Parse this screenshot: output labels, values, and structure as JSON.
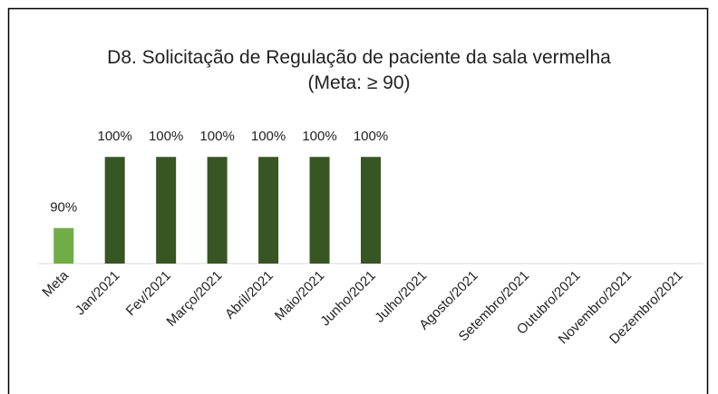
{
  "chart_data": {
    "type": "bar",
    "title": "D8. Solicitação de Regulação de paciente da sala vermelha (Meta: ≥ 90)",
    "categories": [
      "Meta",
      "Jan/2021",
      "Fev/2021",
      "Março/2021",
      "Abril/2021",
      "Maio/2021",
      "Junho/2021",
      "Julho/2021",
      "Agosto/2021",
      "Setembro/2021",
      "Outubro/2021",
      "Novembro/2021",
      "Dezembro/2021"
    ],
    "values": [
      90,
      100,
      100,
      100,
      100,
      100,
      100,
      null,
      null,
      null,
      null,
      null,
      null
    ],
    "value_labels": [
      "90%",
      "100%",
      "100%",
      "100%",
      "100%",
      "100%",
      "100%",
      null,
      null,
      null,
      null,
      null,
      null
    ],
    "colors": [
      "#70ad47",
      "#375623",
      "#375623",
      "#375623",
      "#375623",
      "#375623",
      "#375623",
      "#375623",
      "#375623",
      "#375623",
      "#375623",
      "#375623",
      "#375623"
    ],
    "ylim": [
      85,
      105
    ]
  }
}
